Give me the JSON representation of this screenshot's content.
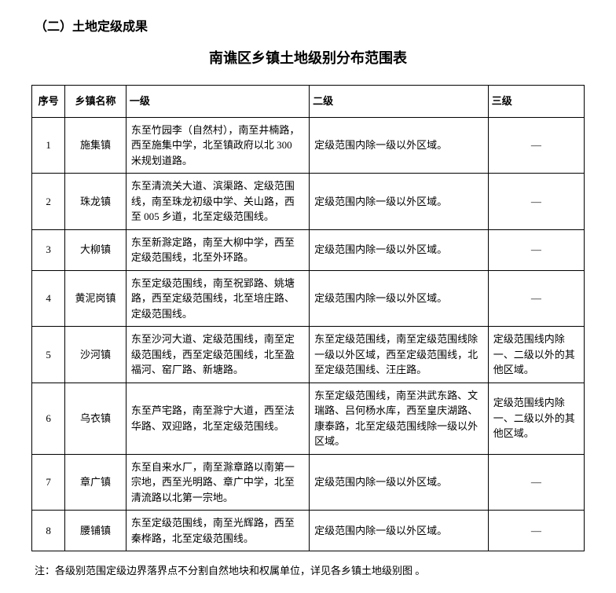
{
  "section_heading": "（二）土地定级成果",
  "table_title": "南谯区乡镇土地级别分布范围表",
  "table": {
    "columns": [
      "序号",
      "乡镇名称",
      "一级",
      "二级",
      "三级"
    ],
    "rows": [
      {
        "no": "1",
        "name": "施集镇",
        "level1": "东至竹园李（自然村），南至井楠路，西至施集中学，北至镇政府以北 300 米规划道路。",
        "level2": "定级范围内除一级以外区域。",
        "level3": "—",
        "level3_center": true
      },
      {
        "no": "2",
        "name": "珠龙镇",
        "level1": "东至清流关大道、滨渠路、定级范围线，南至珠龙初级中学、关山路，西至 005 乡道，北至定级范围线。",
        "level2": "定级范围内除一级以外区域。",
        "level3": "—",
        "level3_center": true
      },
      {
        "no": "3",
        "name": "大柳镇",
        "level1": "东至新滁定路，南至大柳中学，西至定级范围线，北至外环路。",
        "level2": "定级范围内除一级以外区域。",
        "level3": "—",
        "level3_center": true
      },
      {
        "no": "4",
        "name": "黄泥岗镇",
        "level1": "东至定级范围线，南至祝郢路、姚塘路，西至定级范围线，北至培庄路、定级范围线。",
        "level2": "定级范围内除一级以外区域。",
        "level3": "—",
        "level3_center": true
      },
      {
        "no": "5",
        "name": "沙河镇",
        "level1": "东至沙河大道、定级范围线，南至定级范围线，西至定级范围线，北至盈福河、窑厂路、新塘路。",
        "level2": "东至定级范围线，南至定级范围线除一级以外区域，西至定级范围线，北至定级范围线、汪庄路。",
        "level3": "定级范围线内除一、二级以外的其他区域。",
        "level3_center": false
      },
      {
        "no": "6",
        "name": "乌衣镇",
        "level1": "东至芦宅路，南至滁宁大道，西至法华路、双迎路，北至定级范围线。",
        "level2": "东至定级范围线，南至洪武东路、文瑞路、吕何杨水库，西至皇庆湖路、康泰路，北至定级范围线除一级以外区域。",
        "level3": "定级范围线内除一、二级以外的其他区域。",
        "level3_center": false
      },
      {
        "no": "7",
        "name": "章广镇",
        "level1": "东至自来水厂，南至滁章路以南第一宗地，西至光明路、章广中学，北至清流路以北第一宗地。",
        "level2": "定级范围内除一级以外区域。",
        "level3": "—",
        "level3_center": true
      },
      {
        "no": "8",
        "name": "腰铺镇",
        "level1": "东至定级范围线，南至光辉路，西至秦桦路，北至定级范围线。",
        "level2": "定级范围内除一级以外区域。",
        "level3": "—",
        "level3_center": true
      }
    ]
  },
  "footnote": "注：各级别范围定级边界落界点不分割自然地块和权属单位，详见各乡镇土地级别图  。"
}
